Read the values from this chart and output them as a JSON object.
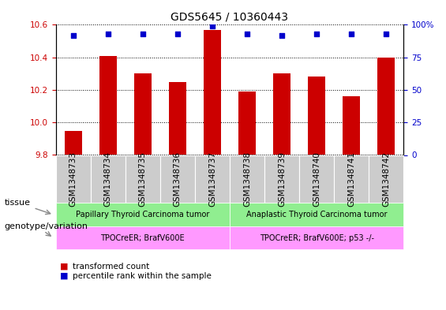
{
  "title": "GDS5645 / 10360443",
  "samples": [
    "GSM1348733",
    "GSM1348734",
    "GSM1348735",
    "GSM1348736",
    "GSM1348737",
    "GSM1348738",
    "GSM1348739",
    "GSM1348740",
    "GSM1348741",
    "GSM1348742"
  ],
  "transformed_count": [
    9.95,
    10.41,
    10.3,
    10.25,
    10.57,
    10.19,
    10.3,
    10.28,
    10.16,
    10.4
  ],
  "percentile_rank": [
    92,
    93,
    93,
    93,
    99,
    93,
    92,
    93,
    93,
    93
  ],
  "bar_color": "#cc0000",
  "dot_color": "#0000cc",
  "ylim_left": [
    9.8,
    10.6
  ],
  "ylim_right": [
    0,
    100
  ],
  "yticks_left": [
    9.8,
    10.0,
    10.2,
    10.4,
    10.6
  ],
  "yticks_right": [
    0,
    25,
    50,
    75,
    100
  ],
  "tissue_group1_label": "Papillary Thyroid Carcinoma tumor",
  "tissue_group2_label": "Anaplastic Thyroid Carcinoma tumor",
  "tissue_color": "#90ee90",
  "genotype_group1_label": "TPOCreER; BrafV600E",
  "genotype_group2_label": "TPOCreER; BrafV600E; p53 -/-",
  "genotype_color": "#ff99ff",
  "tissue_row_label": "tissue",
  "genotype_row_label": "genotype/variation",
  "legend_items": [
    "transformed count",
    "percentile rank within the sample"
  ],
  "bar_width": 0.5,
  "background_color": "#ffffff",
  "title_fontsize": 10,
  "tick_fontsize": 7.5,
  "label_fontsize": 8,
  "sample_box_color": "#cccccc"
}
